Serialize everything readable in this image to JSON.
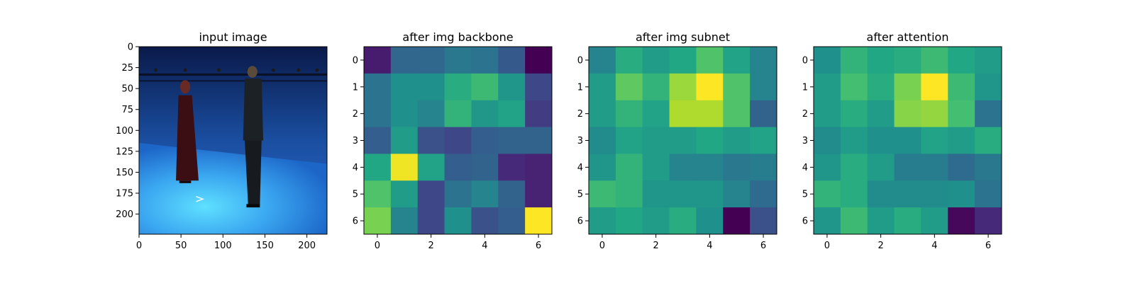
{
  "chart_data": [
    {
      "type": "image",
      "title": "input image",
      "xticks": [
        0,
        50,
        100,
        150,
        200
      ],
      "yticks": [
        0,
        25,
        50,
        75,
        100,
        125,
        150,
        175,
        200
      ],
      "xlim": [
        0,
        224
      ],
      "ylim": [
        224,
        0
      ],
      "scene": "photo of two people standing in a blue-lit motion capture studio"
    },
    {
      "type": "heatmap",
      "title": "after img backbone",
      "colormap": "viridis",
      "xticks": [
        0,
        2,
        4,
        6
      ],
      "yticks": [
        0,
        1,
        2,
        3,
        4,
        5,
        6
      ],
      "values": [
        [
          0.08,
          0.33,
          0.34,
          0.4,
          0.38,
          0.28,
          0.0
        ],
        [
          0.38,
          0.5,
          0.5,
          0.62,
          0.68,
          0.52,
          0.22
        ],
        [
          0.38,
          0.5,
          0.45,
          0.65,
          0.53,
          0.58,
          0.18
        ],
        [
          0.3,
          0.55,
          0.25,
          0.22,
          0.3,
          0.32,
          0.32
        ],
        [
          0.6,
          0.98,
          0.58,
          0.3,
          0.32,
          0.12,
          0.1
        ],
        [
          0.72,
          0.55,
          0.22,
          0.38,
          0.45,
          0.32,
          0.1
        ],
        [
          0.8,
          0.45,
          0.22,
          0.5,
          0.25,
          0.3,
          1.0
        ]
      ]
    },
    {
      "type": "heatmap",
      "title": "after img subnet",
      "colormap": "viridis",
      "xticks": [
        0,
        2,
        4,
        6
      ],
      "yticks": [
        0,
        1,
        2,
        3,
        4,
        5,
        6
      ],
      "values": [
        [
          0.45,
          0.62,
          0.55,
          0.6,
          0.72,
          0.58,
          0.45
        ],
        [
          0.55,
          0.75,
          0.65,
          0.85,
          1.0,
          0.72,
          0.45
        ],
        [
          0.55,
          0.65,
          0.58,
          0.88,
          0.88,
          0.72,
          0.32
        ],
        [
          0.48,
          0.58,
          0.55,
          0.55,
          0.6,
          0.55,
          0.58
        ],
        [
          0.52,
          0.65,
          0.55,
          0.45,
          0.45,
          0.4,
          0.42
        ],
        [
          0.68,
          0.65,
          0.52,
          0.52,
          0.52,
          0.45,
          0.35
        ],
        [
          0.55,
          0.6,
          0.55,
          0.62,
          0.5,
          0.0,
          0.25
        ]
      ]
    },
    {
      "type": "heatmap",
      "title": "after attention",
      "colormap": "viridis",
      "xticks": [
        0,
        2,
        4,
        6
      ],
      "yticks": [
        0,
        1,
        2,
        3,
        4,
        5,
        6
      ],
      "values": [
        [
          0.5,
          0.65,
          0.6,
          0.62,
          0.68,
          0.6,
          0.55
        ],
        [
          0.55,
          0.7,
          0.62,
          0.8,
          1.0,
          0.68,
          0.52
        ],
        [
          0.55,
          0.62,
          0.55,
          0.82,
          0.84,
          0.7,
          0.38
        ],
        [
          0.48,
          0.55,
          0.5,
          0.5,
          0.58,
          0.55,
          0.62
        ],
        [
          0.52,
          0.62,
          0.55,
          0.42,
          0.42,
          0.35,
          0.4
        ],
        [
          0.65,
          0.62,
          0.48,
          0.48,
          0.48,
          0.5,
          0.38
        ],
        [
          0.52,
          0.68,
          0.55,
          0.62,
          0.55,
          0.02,
          0.12
        ]
      ]
    }
  ]
}
